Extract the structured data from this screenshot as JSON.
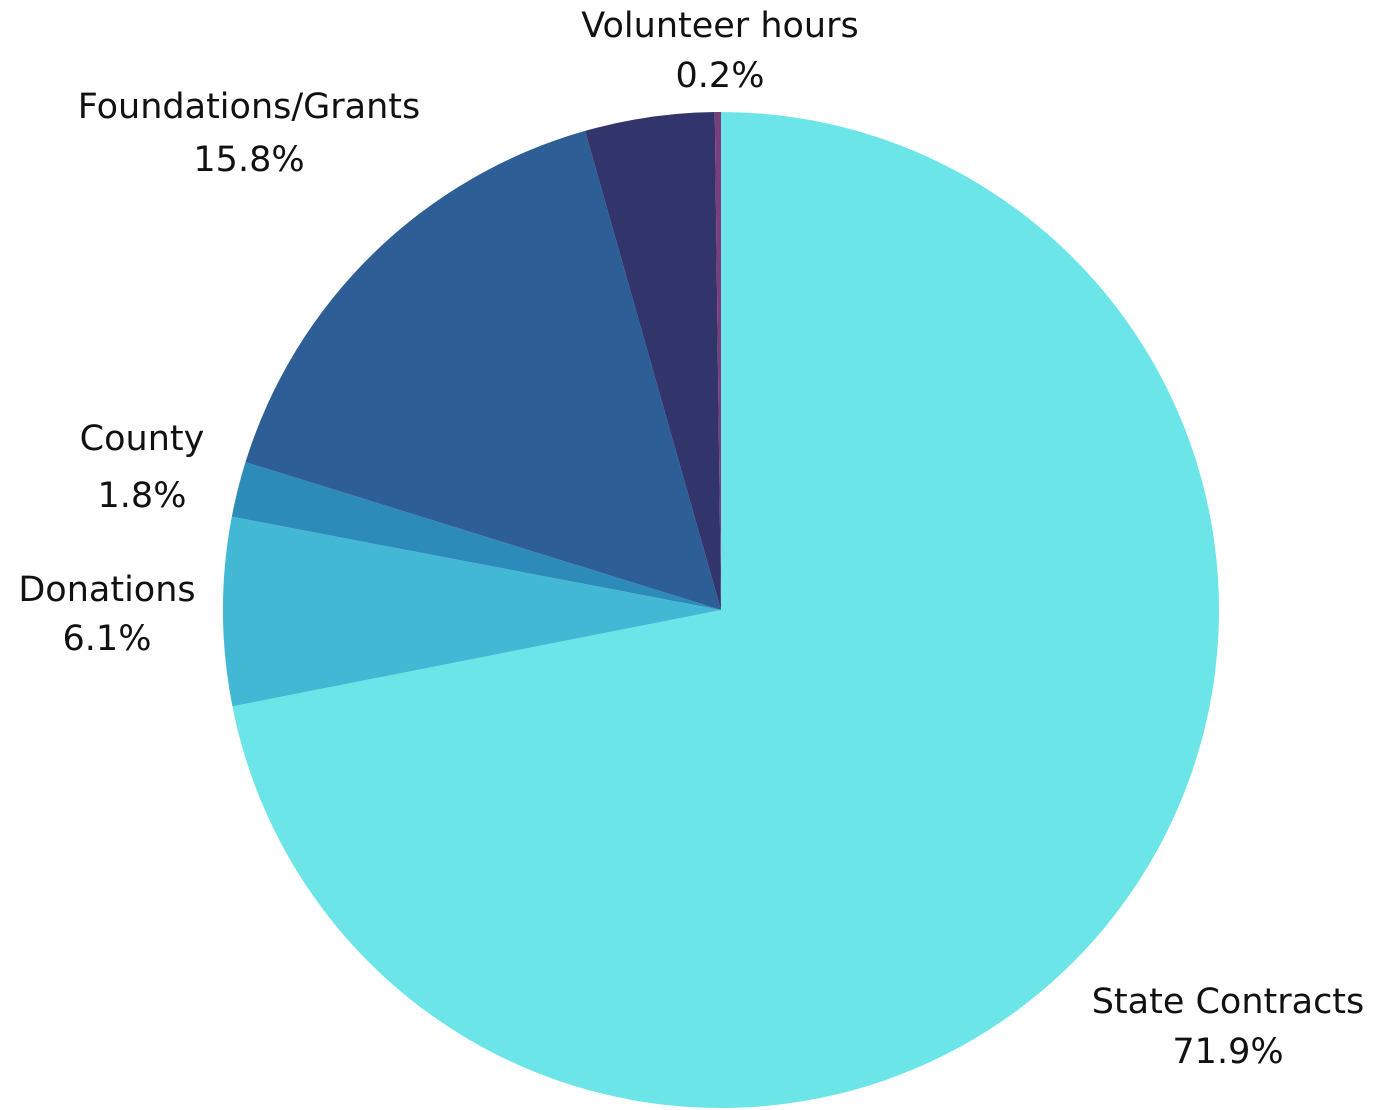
{
  "chart_data": {
    "type": "pie",
    "categories": [
      "State Contracts",
      "Donations",
      "County",
      "Foundations/Grants",
      null,
      "Volunteer hours"
    ],
    "values": [
      71.9,
      6.1,
      1.8,
      15.8,
      4.2,
      0.2
    ],
    "value_labels": [
      "71.9%",
      "6.1%",
      "1.8%",
      "15.8%",
      null,
      "0.2%"
    ],
    "colors": [
      "#6ce5e8",
      "#42b8d5",
      "#2d8bba",
      "#2e5e96",
      "#31356b",
      "#7a3f7a"
    ]
  }
}
